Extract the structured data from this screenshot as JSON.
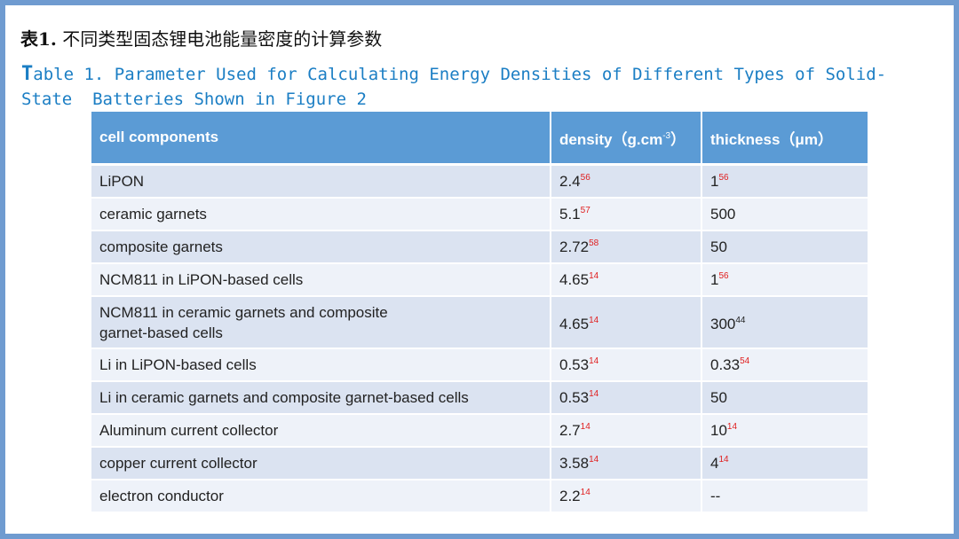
{
  "title_cn_bold": "表1.",
  "title_cn_rest": " 不同类型固态锂电池能量密度的计算参数",
  "title_en_first": "T",
  "title_en_rest": "able 1. Parameter Used for Calculating Energy Densities of Different Types of Solid-\nState  Batteries Shown in Figure 2",
  "table": {
    "headers": {
      "component": "cell components",
      "density": "density（g.cm",
      "density_sup": "-3",
      "density_end": "）",
      "thickness": "thickness（μm）"
    },
    "rows": [
      {
        "component": "LiPON",
        "density": "2.4",
        "density_ref": "56",
        "density_ref_color": "#e02020",
        "thickness": "1",
        "thickness_ref": "56",
        "thickness_ref_color": "#e02020"
      },
      {
        "component": "ceramic  garnets",
        "density": "5.1",
        "density_ref": "57",
        "density_ref_color": "#e02020",
        "thickness": "500",
        "thickness_ref": "",
        "thickness_ref_color": "#e02020"
      },
      {
        "component": "composite  garnets",
        "density": "2.72",
        "density_ref": "58",
        "density_ref_color": "#e02020",
        "thickness": "50",
        "thickness_ref": "",
        "thickness_ref_color": "#e02020"
      },
      {
        "component": "NCM811 in  LiPON-based  cells",
        "density": "4.65",
        "density_ref": "14",
        "density_ref_color": "#e02020",
        "thickness": "1",
        "thickness_ref": "56",
        "thickness_ref_color": "#e02020"
      },
      {
        "component_line1": "NCM811 in ceramic  garnets  and  composite",
        "component_line2": "garnet-based cells",
        "density": "4.65",
        "density_ref": "14",
        "density_ref_color": "#e02020",
        "thickness": "300",
        "thickness_ref": "44",
        "thickness_ref_color": "#222222"
      },
      {
        "component": "Li  in  LiPON-based cells",
        "density": "0.53",
        "density_ref": "14",
        "density_ref_color": "#e02020",
        "thickness": "0.33",
        "thickness_ref": "54",
        "thickness_ref_color": "#e02020"
      },
      {
        "component": "Li  in  ceramic  garnets  and  composite  garnet-based  cells",
        "density": "0.53",
        "density_ref": "14",
        "density_ref_color": "#e02020",
        "thickness": "50",
        "thickness_ref": "",
        "thickness_ref_color": "#e02020"
      },
      {
        "component": "Aluminum current  collector",
        "density": "2.7",
        "density_ref": "14",
        "density_ref_color": "#e02020",
        "thickness": "10",
        "thickness_ref": "14",
        "thickness_ref_color": "#e02020"
      },
      {
        "component": "copper current  collector",
        "density": "3.58",
        "density_ref": "14",
        "density_ref_color": "#e02020",
        "thickness": "4",
        "thickness_ref": "14",
        "thickness_ref_color": "#e02020"
      },
      {
        "component": "electron  conductor",
        "density": "2.2",
        "density_ref": "14",
        "density_ref_color": "#e02020",
        "thickness": "--",
        "thickness_ref": "",
        "thickness_ref_color": "#e02020"
      }
    ]
  },
  "colors": {
    "frame": "#6f9bd0",
    "title_en": "#1b7ec4",
    "header_bg": "#5b9bd5",
    "row_odd": "#dbe3f1",
    "row_even": "#eef2f9",
    "ref_red": "#e02020"
  }
}
